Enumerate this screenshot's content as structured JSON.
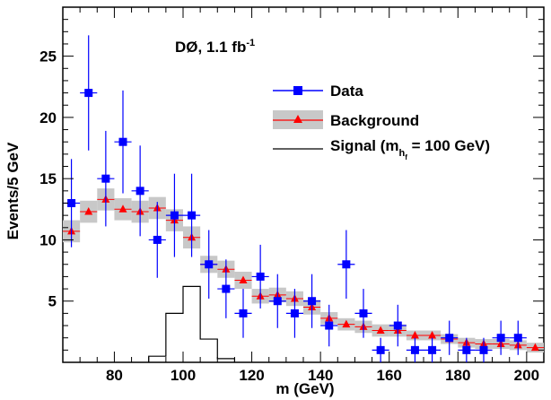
{
  "chart_data": {
    "type": "scatter",
    "xlabel": "m (GeV)",
    "ylabel": "Events/5 GeV",
    "xlim": [
      65,
      205
    ],
    "ylim": [
      0,
      29
    ],
    "x_ticks": [
      80,
      100,
      120,
      140,
      160,
      180,
      200
    ],
    "y_ticks": [
      5,
      10,
      15,
      20,
      25
    ],
    "x_tick_labels": [
      "80",
      "100",
      "120",
      "140",
      "160",
      "180",
      "200"
    ],
    "y_tick_labels": [
      "5",
      "10",
      "15",
      "20",
      "25"
    ],
    "bin_width": 5,
    "annotation": {
      "main": "DØ, 1.1 fb",
      "sup": "-1"
    },
    "legend": {
      "position": "top-right",
      "data": "Data",
      "background": "Background",
      "signal_prefix": "Signal (m",
      "signal_sub": "h",
      "signal_subsub": "f",
      "signal_suffix": " = 100 GeV)"
    },
    "series": [
      {
        "name": "Data",
        "color": "#0000ff",
        "x": [
          67.5,
          72.5,
          77.5,
          82.5,
          87.5,
          92.5,
          97.5,
          102.5,
          107.5,
          112.5,
          117.5,
          122.5,
          127.5,
          132.5,
          137.5,
          142.5,
          147.5,
          152.5,
          157.5,
          162.5,
          167.5,
          172.5,
          177.5,
          182.5,
          187.5,
          192.5,
          197.5
        ],
        "y": [
          13,
          22,
          15,
          18,
          14,
          10,
          12,
          12,
          8,
          6,
          4,
          7,
          5,
          4,
          5,
          3,
          8,
          4,
          1,
          3,
          1,
          1,
          2,
          1,
          1,
          2,
          2
        ],
        "err_lo": [
          3.6,
          4.7,
          3.9,
          4.2,
          3.7,
          3.1,
          3.4,
          3.4,
          2.8,
          2.4,
          2.0,
          2.6,
          2.2,
          2.0,
          2.2,
          1.7,
          2.8,
          2.0,
          1.0,
          1.7,
          1.0,
          1.0,
          1.4,
          1.0,
          1.0,
          1.4,
          1.4
        ],
        "err_hi": [
          3.6,
          4.7,
          3.9,
          4.2,
          3.7,
          3.1,
          3.4,
          3.4,
          2.8,
          2.4,
          2.0,
          2.6,
          2.2,
          2.0,
          2.2,
          1.7,
          2.8,
          2.0,
          1.0,
          1.7,
          1.0,
          1.0,
          1.4,
          1.0,
          1.0,
          1.4,
          1.4
        ]
      },
      {
        "name": "Background",
        "color": "#ff0000",
        "band_color": "#c8c8c8",
        "x": [
          67.5,
          72.5,
          77.5,
          82.5,
          87.5,
          92.5,
          97.5,
          102.5,
          107.5,
          112.5,
          117.5,
          122.5,
          127.5,
          132.5,
          137.5,
          142.5,
          147.5,
          152.5,
          157.5,
          162.5,
          167.5,
          172.5,
          177.5,
          182.5,
          187.5,
          192.5,
          197.5,
          202.5
        ],
        "y": [
          10.7,
          12.3,
          13.3,
          12.5,
          12.3,
          12.6,
          11.6,
          10.2,
          8.0,
          7.6,
          6.7,
          5.4,
          5.5,
          5.2,
          4.5,
          3.6,
          3.1,
          2.9,
          2.6,
          2.6,
          2.2,
          2.2,
          1.9,
          1.6,
          1.5,
          1.5,
          1.4,
          1.2
        ],
        "band_half": [
          0.9,
          0.9,
          0.9,
          0.9,
          0.9,
          0.9,
          0.9,
          0.9,
          0.7,
          0.7,
          0.7,
          0.6,
          0.6,
          0.6,
          0.6,
          0.5,
          0.5,
          0.5,
          0.5,
          0.5,
          0.4,
          0.4,
          0.4,
          0.4,
          0.4,
          0.4,
          0.4,
          0.4
        ]
      },
      {
        "name": "Signal (m_hf = 100 GeV)",
        "color": "#000000",
        "bin_edges": [
          90,
          95,
          100,
          105,
          110,
          115
        ],
        "values": [
          0.5,
          4.0,
          6.2,
          1.9,
          0.3
        ]
      }
    ]
  }
}
